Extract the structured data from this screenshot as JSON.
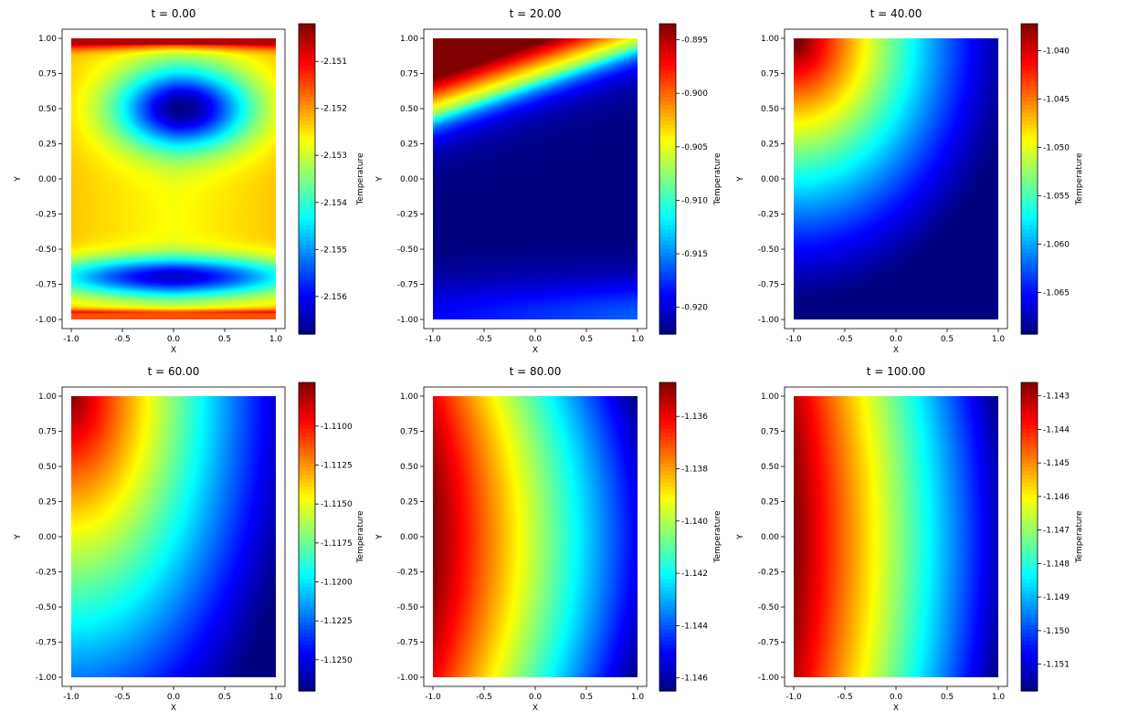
{
  "chart_data": [
    {
      "type": "heatmap",
      "title": "t = 0.00",
      "xlabel": "X",
      "ylabel": "Y",
      "xlim": [
        -1,
        1
      ],
      "ylim": [
        -1,
        1
      ],
      "colormap": "jet",
      "colorbar_label": "Temperature",
      "colorbar_range": [
        -2.1568,
        -2.1502
      ],
      "colorbar_ticks": [
        "-2.151",
        "-2.152",
        "-2.153",
        "-2.154",
        "-2.155",
        "-2.156"
      ],
      "x_ticks": [
        "-1.0",
        "-0.5",
        "0.0",
        "0.5",
        "1.0"
      ],
      "y_ticks": [
        "1.00",
        "0.75",
        "0.50",
        "0.25",
        "0.00",
        "-0.25",
        "-0.50",
        "-0.75",
        "-1.00"
      ]
    },
    {
      "type": "heatmap",
      "title": "t = 20.00",
      "xlabel": "X",
      "ylabel": "Y",
      "xlim": [
        -1,
        1
      ],
      "ylim": [
        -1,
        1
      ],
      "colormap": "jet",
      "colorbar_label": "Temperature",
      "colorbar_range": [
        -0.9225,
        -0.8935
      ],
      "colorbar_ticks": [
        "-0.895",
        "-0.900",
        "-0.905",
        "-0.910",
        "-0.915",
        "-0.920"
      ],
      "x_ticks": [
        "-1.0",
        "-0.5",
        "0.0",
        "0.5",
        "1.0"
      ],
      "y_ticks": [
        "1.00",
        "0.75",
        "0.50",
        "0.25",
        "0.00",
        "-0.25",
        "-0.50",
        "-0.75",
        "-1.00"
      ]
    },
    {
      "type": "heatmap",
      "title": "t = 40.00",
      "xlabel": "X",
      "ylabel": "Y",
      "xlim": [
        -1,
        1
      ],
      "ylim": [
        -1,
        1
      ],
      "colormap": "jet",
      "colorbar_label": "Temperature",
      "colorbar_range": [
        -1.0693,
        -1.0372
      ],
      "colorbar_ticks": [
        "-1.040",
        "-1.045",
        "-1.050",
        "-1.055",
        "-1.060",
        "-1.065"
      ],
      "x_ticks": [
        "-1.0",
        "-0.5",
        "0.0",
        "0.5",
        "1.0"
      ],
      "y_ticks": [
        "1.00",
        "0.75",
        "0.50",
        "0.25",
        "0.00",
        "-0.25",
        "-0.50",
        "-0.75",
        "-1.00"
      ]
    },
    {
      "type": "heatmap",
      "title": "t = 60.00",
      "xlabel": "X",
      "ylabel": "Y",
      "xlim": [
        -1,
        1
      ],
      "ylim": [
        -1,
        1
      ],
      "colormap": "jet",
      "colorbar_label": "Temperature",
      "colorbar_range": [
        -1.127,
        -1.1072
      ],
      "colorbar_ticks": [
        "-1.1100",
        "-1.1125",
        "-1.1150",
        "-1.1175",
        "-1.1200",
        "-1.1225",
        "-1.1250"
      ],
      "x_ticks": [
        "-1.0",
        "-0.5",
        "0.0",
        "0.5",
        "1.0"
      ],
      "y_ticks": [
        "1.00",
        "0.75",
        "0.50",
        "0.25",
        "0.00",
        "-0.25",
        "-0.50",
        "-0.75",
        "-1.00"
      ]
    },
    {
      "type": "heatmap",
      "title": "t = 80.00",
      "xlabel": "X",
      "ylabel": "Y",
      "xlim": [
        -1,
        1
      ],
      "ylim": [
        -1,
        1
      ],
      "colormap": "jet",
      "colorbar_label": "Temperature",
      "colorbar_range": [
        -1.1465,
        -1.1347
      ],
      "colorbar_ticks": [
        "-1.136",
        "-1.138",
        "-1.140",
        "-1.142",
        "-1.144",
        "-1.146"
      ],
      "x_ticks": [
        "-1.0",
        "-0.5",
        "0.0",
        "0.5",
        "1.0"
      ],
      "y_ticks": [
        "1.00",
        "0.75",
        "0.50",
        "0.25",
        "0.00",
        "-0.25",
        "-0.50",
        "-0.75",
        "-1.00"
      ]
    },
    {
      "type": "heatmap",
      "title": "t = 100.00",
      "xlabel": "X",
      "ylabel": "Y",
      "xlim": [
        -1,
        1
      ],
      "ylim": [
        -1,
        1
      ],
      "colormap": "jet",
      "colorbar_label": "Temperature",
      "colorbar_range": [
        -1.1518,
        -1.1426
      ],
      "colorbar_ticks": [
        "-1.143",
        "-1.144",
        "-1.145",
        "-1.146",
        "-1.147",
        "-1.148",
        "-1.149",
        "-1.150",
        "-1.151"
      ],
      "x_ticks": [
        "-1.0",
        "-0.5",
        "0.0",
        "0.5",
        "1.0"
      ],
      "y_ticks": [
        "1.00",
        "0.75",
        "0.50",
        "0.25",
        "0.00",
        "-0.25",
        "-0.50",
        "-0.75",
        "-1.00"
      ]
    }
  ]
}
